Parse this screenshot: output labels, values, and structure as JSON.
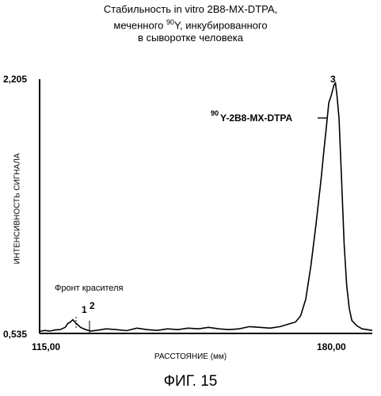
{
  "chart_data": {
    "type": "line",
    "title_lines": [
      "Стабильность in vitro 2B8-MX-DTPA,",
      "меченного ",
      "90",
      "Y, инкубированного",
      "в сыворотке человека"
    ],
    "xlabel": "РАССТОЯНИЕ (мм)",
    "ylabel": "ИНТЕНСИВНОСТЬ СИГНАЛА",
    "xlim": [
      115,
      180
    ],
    "ylim": [
      0.535,
      2.205
    ],
    "x_tick_labels": [
      "115,00",
      "180,00"
    ],
    "y_tick_labels": [
      "2,205",
      "0,535"
    ],
    "series": [
      {
        "x": [
          115,
          116,
          117,
          118,
          119,
          120,
          120.5,
          121,
          121.5,
          122,
          123,
          124,
          125,
          126,
          128,
          130,
          132,
          134,
          136,
          138,
          140,
          142,
          144,
          146,
          148,
          150,
          152,
          154,
          156,
          158,
          160,
          162,
          164,
          165,
          166,
          167,
          168,
          169,
          170,
          170.5,
          171,
          171.5,
          172,
          172.5,
          172.8,
          173.1,
          173.5,
          174,
          174.5,
          175,
          175.5,
          176,
          177,
          178,
          179,
          180
        ],
        "y": [
          0.548,
          0.555,
          0.55,
          0.558,
          0.56,
          0.575,
          0.6,
          0.61,
          0.625,
          0.605,
          0.575,
          0.56,
          0.55,
          0.555,
          0.565,
          0.56,
          0.553,
          0.57,
          0.56,
          0.555,
          0.565,
          0.56,
          0.57,
          0.565,
          0.575,
          0.565,
          0.56,
          0.565,
          0.58,
          0.575,
          0.57,
          0.58,
          0.6,
          0.61,
          0.65,
          0.76,
          0.98,
          1.25,
          1.55,
          1.72,
          1.88,
          2.05,
          2.1,
          2.165,
          2.18,
          2.1,
          1.95,
          1.55,
          1.12,
          0.85,
          0.7,
          0.62,
          0.585,
          0.565,
          0.56,
          0.555
        ]
      }
    ],
    "annotations": {
      "dye_front": "Фронт красителя",
      "peak1": "1",
      "peak2": "2",
      "peak3": "3",
      "label_sup": "90",
      "label_main": "Y-2B8-MX-DTPA"
    }
  },
  "figure_caption": "ФИГ. 15"
}
